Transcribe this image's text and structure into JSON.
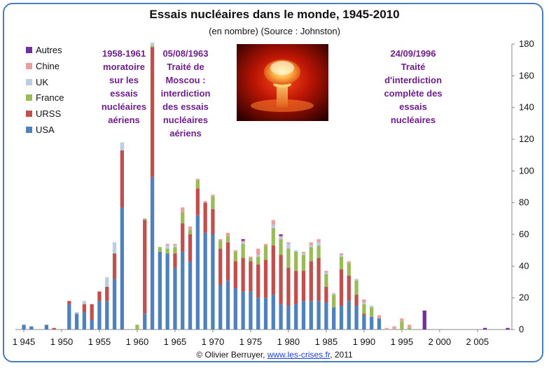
{
  "chart_data": {
    "type": "bar",
    "stacked": true,
    "title": "Essais nucléaires dans le monde, 1945-2010",
    "subtitle": "(en nombre) (Source : Johnston)",
    "xlabel": "",
    "ylabel": "",
    "y_axis_side": "right",
    "ylim": [
      0,
      180
    ],
    "yticks": [
      0,
      20,
      40,
      60,
      80,
      100,
      120,
      140,
      160,
      180
    ],
    "xlim": [
      1945,
      2009
    ],
    "xticks": [
      {
        "year": 1945,
        "label": "1 945"
      },
      {
        "year": 1950,
        "label": "1 950"
      },
      {
        "year": 1955,
        "label": "1 955"
      },
      {
        "year": 1960,
        "label": "1 960"
      },
      {
        "year": 1965,
        "label": "1 965"
      },
      {
        "year": 1970,
        "label": "1 970"
      },
      {
        "year": 1975,
        "label": "1 975"
      },
      {
        "year": 1980,
        "label": "1 980"
      },
      {
        "year": 1985,
        "label": "1 985"
      },
      {
        "year": 1990,
        "label": "1 990"
      },
      {
        "year": 1995,
        "label": "1 995"
      },
      {
        "year": 2000,
        "label": "2 000"
      },
      {
        "year": 2005,
        "label": "2 005"
      }
    ],
    "grid": false,
    "legend_position": "top-left",
    "x": [
      1945,
      1946,
      1947,
      1948,
      1949,
      1950,
      1951,
      1952,
      1953,
      1954,
      1955,
      1956,
      1957,
      1958,
      1959,
      1960,
      1961,
      1962,
      1963,
      1964,
      1965,
      1966,
      1967,
      1968,
      1969,
      1970,
      1971,
      1972,
      1973,
      1974,
      1975,
      1976,
      1977,
      1978,
      1979,
      1980,
      1981,
      1982,
      1983,
      1984,
      1985,
      1986,
      1987,
      1988,
      1989,
      1990,
      1991,
      1992,
      1993,
      1994,
      1995,
      1996,
      1997,
      1998,
      1999,
      2000,
      2001,
      2002,
      2003,
      2004,
      2005,
      2006,
      2007,
      2008,
      2009
    ],
    "series": [
      {
        "name": "USA",
        "color": "#4f81bd",
        "values": [
          3,
          2,
          0,
          3,
          0,
          0,
          16,
          10,
          11,
          6,
          18,
          18,
          32,
          77,
          0,
          0,
          10,
          96,
          49,
          48,
          39,
          49,
          43,
          72,
          61,
          60,
          28,
          31,
          26,
          24,
          24,
          20,
          20,
          22,
          16,
          15,
          16,
          18,
          18,
          18,
          17,
          14,
          15,
          18,
          15,
          9,
          8,
          7,
          0,
          0,
          0,
          0,
          0,
          0,
          0,
          0,
          0,
          0,
          0,
          0,
          0,
          0,
          0,
          0,
          0
        ]
      },
      {
        "name": "URSS",
        "color": "#c0504d",
        "values": [
          0,
          0,
          0,
          0,
          1,
          0,
          2,
          0,
          5,
          10,
          6,
          9,
          16,
          36,
          0,
          0,
          59,
          82,
          0,
          0,
          9,
          18,
          17,
          17,
          19,
          16,
          23,
          24,
          17,
          21,
          19,
          21,
          24,
          31,
          31,
          24,
          21,
          19,
          25,
          27,
          10,
          0,
          23,
          16,
          7,
          1,
          0,
          0,
          0,
          0,
          0,
          0,
          0,
          0,
          0,
          0,
          0,
          0,
          0,
          0,
          0,
          0,
          0,
          0,
          0
        ]
      },
      {
        "name": "France",
        "color": "#9bbb59",
        "values": [
          0,
          0,
          0,
          0,
          0,
          0,
          0,
          0,
          0,
          0,
          0,
          0,
          0,
          0,
          0,
          3,
          1,
          1,
          3,
          3,
          4,
          7,
          3,
          5,
          0,
          8,
          5,
          4,
          6,
          9,
          2,
          5,
          9,
          11,
          10,
          12,
          12,
          10,
          9,
          8,
          8,
          8,
          8,
          8,
          9,
          6,
          6,
          0,
          0,
          0,
          5,
          1,
          0,
          0,
          0,
          0,
          0,
          0,
          0,
          0,
          0,
          0,
          0,
          0,
          0
        ]
      },
      {
        "name": "UK",
        "color": "#b9cde5",
        "values": [
          0,
          0,
          0,
          0,
          0,
          0,
          0,
          1,
          2,
          0,
          0,
          6,
          7,
          5,
          0,
          0,
          0,
          2,
          0,
          2,
          1,
          0,
          0,
          0,
          0,
          0,
          0,
          0,
          0,
          1,
          0,
          1,
          0,
          2,
          1,
          3,
          1,
          1,
          1,
          2,
          1,
          1,
          1,
          0,
          1,
          1,
          1,
          0,
          0,
          0,
          0,
          0,
          0,
          0,
          0,
          0,
          0,
          0,
          0,
          0,
          0,
          0,
          0,
          0,
          0
        ]
      },
      {
        "name": "Chine",
        "color": "#e6a09d",
        "values": [
          0,
          0,
          0,
          0,
          0,
          0,
          0,
          0,
          0,
          0,
          0,
          0,
          0,
          0,
          0,
          0,
          0,
          0,
          0,
          1,
          1,
          3,
          2,
          1,
          1,
          1,
          1,
          2,
          1,
          1,
          1,
          4,
          1,
          3,
          1,
          1,
          0,
          1,
          2,
          2,
          1,
          0,
          1,
          1,
          0,
          2,
          0,
          2,
          1,
          2,
          2,
          2,
          0,
          0,
          0,
          0,
          0,
          0,
          0,
          0,
          0,
          0,
          0,
          0,
          0
        ]
      },
      {
        "name": "Autres",
        "color": "#7030a0",
        "values": [
          0,
          0,
          0,
          0,
          0,
          0,
          0,
          0,
          0,
          0,
          0,
          0,
          0,
          0,
          0,
          0,
          0,
          0,
          0,
          0,
          0,
          0,
          0,
          0,
          0,
          0,
          0,
          0,
          0,
          1,
          0,
          0,
          0,
          0,
          1,
          0,
          0,
          0,
          0,
          0,
          0,
          0,
          0,
          0,
          0,
          0,
          0,
          0,
          0,
          0,
          0,
          0,
          0,
          12,
          0,
          0,
          0,
          0,
          0,
          0,
          0,
          1,
          0,
          0,
          1
        ]
      }
    ],
    "annotations": [
      "1958-1961\nmoratoire\nsur les\nessais\nnucléaires\naériens",
      "05/08/1963\nTraité de\nMoscou :\ninterdiction\ndes essais\nnucléaires\naériens",
      "24/09/1996\nTraité\nd'interdiction\ncomplète des\nessais\nnucléaires"
    ]
  },
  "footer": {
    "prefix": "© Olivier Berruyer, ",
    "link_text": "www.les-crises.fr",
    "suffix": ", 2011"
  },
  "photo": {
    "icon": "mushroom-cloud-photo"
  }
}
